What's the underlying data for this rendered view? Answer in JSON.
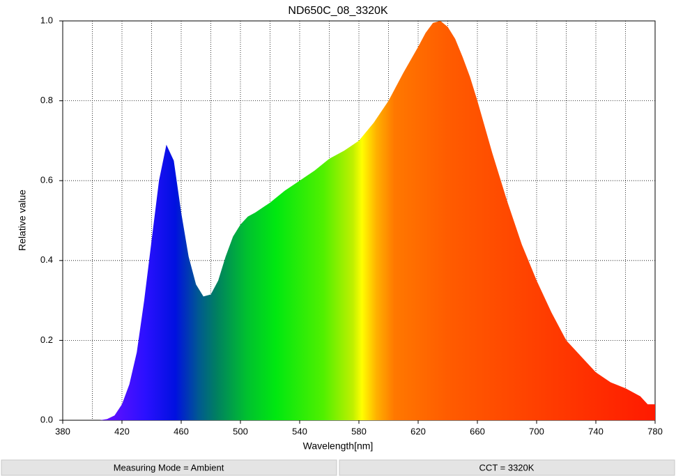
{
  "chart_data": {
    "type": "area",
    "title": "ND650C_08_3320K",
    "xlabel": "Wavelength[nm]",
    "ylabel": "Relative value",
    "x": [
      380,
      390,
      400,
      405,
      410,
      415,
      420,
      425,
      430,
      435,
      440,
      445,
      450,
      455,
      460,
      465,
      470,
      475,
      480,
      485,
      490,
      495,
      500,
      505,
      510,
      520,
      530,
      540,
      550,
      560,
      570,
      580,
      590,
      600,
      610,
      620,
      625,
      630,
      635,
      640,
      645,
      650,
      655,
      660,
      670,
      680,
      690,
      700,
      710,
      720,
      730,
      740,
      750,
      760,
      770,
      775,
      780
    ],
    "values": [
      0,
      0,
      0,
      0,
      0.003,
      0.012,
      0.04,
      0.09,
      0.17,
      0.3,
      0.45,
      0.6,
      0.69,
      0.65,
      0.52,
      0.41,
      0.34,
      0.31,
      0.315,
      0.35,
      0.41,
      0.46,
      0.49,
      0.51,
      0.52,
      0.545,
      0.575,
      0.6,
      0.625,
      0.655,
      0.675,
      0.7,
      0.745,
      0.8,
      0.87,
      0.935,
      0.97,
      0.995,
      1.0,
      0.985,
      0.955,
      0.91,
      0.86,
      0.8,
      0.67,
      0.55,
      0.44,
      0.35,
      0.27,
      0.2,
      0.16,
      0.12,
      0.095,
      0.08,
      0.06,
      0.04,
      0.04
    ],
    "xlim": [
      380,
      780
    ],
    "xticks": [
      380,
      420,
      460,
      500,
      540,
      580,
      620,
      660,
      700,
      740,
      780
    ],
    "xgrid": [
      400,
      420,
      440,
      460,
      480,
      500,
      520,
      540,
      560,
      580,
      600,
      620,
      640,
      660,
      680,
      700,
      720,
      740,
      760
    ],
    "ylim": [
      0,
      1
    ],
    "yticks": [
      {
        "value": 0,
        "label": "0.0"
      },
      0.2,
      0.4,
      0.6,
      0.8,
      {
        "value": 1,
        "label": "1.0"
      }
    ],
    "grid": true
  },
  "status_bar": [
    "Measuring Mode = Ambient",
    "CCT = 3320K"
  ]
}
